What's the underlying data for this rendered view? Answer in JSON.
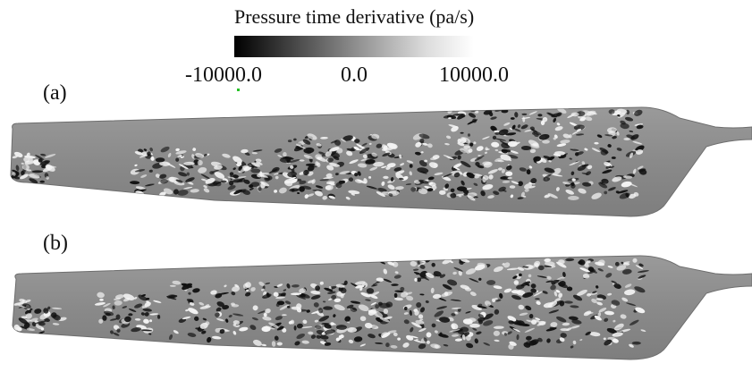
{
  "colorbar": {
    "title": "Pressure time derivative (pa/s)",
    "min_label": "-10000.0",
    "mid_label": "0.0",
    "max_label": "10000.0",
    "min_color": "#000000",
    "max_color": "#ffffff"
  },
  "panels": [
    {
      "label": "(a)",
      "blade_color": "#8c8c8c"
    },
    {
      "label": "(b)",
      "blade_color": "#8c8c8c"
    }
  ]
}
